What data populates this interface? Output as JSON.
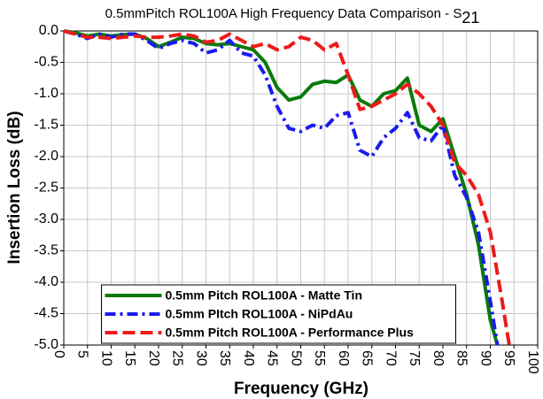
{
  "chart_data": {
    "type": "line",
    "title": "0.5mmPitch ROL100A High Frequency Data Comparison - S",
    "title_subscript": "21",
    "x_label": "Frequency (GHz)",
    "y_label": "Insertion Loss (dB)",
    "xlim": [
      0,
      100
    ],
    "xticks": [
      0,
      5,
      10,
      15,
      20,
      25,
      30,
      35,
      40,
      45,
      50,
      55,
      60,
      65,
      70,
      75,
      80,
      85,
      90,
      95,
      100
    ],
    "ylim": [
      -5,
      0
    ],
    "yticks": [
      {
        "value": 0,
        "label": "0.0"
      },
      -0.5,
      {
        "value": -1,
        "label": "-1.0"
      },
      -1.5,
      {
        "value": -2,
        "label": "-2.0"
      },
      -2.5,
      {
        "value": -3,
        "label": "-3.0"
      },
      -3.5,
      {
        "value": -4,
        "label": "-4.0"
      },
      -4.5,
      {
        "value": -5,
        "label": "-5.0"
      }
    ],
    "grid": true,
    "legend": "lower center",
    "series": [
      {
        "name": "0.5mm Pitch ROL100A - Matte Tin",
        "color": "#0a7a0a",
        "dash": "solid",
        "x": [
          0,
          2.5,
          5,
          7.5,
          10,
          12.5,
          15,
          17.5,
          20,
          22.5,
          25,
          27.5,
          30,
          32.5,
          35,
          37.5,
          40,
          42.5,
          45,
          47.5,
          50,
          52.5,
          55,
          57.5,
          60,
          62.5,
          65,
          67.5,
          70,
          72.5,
          75,
          77.5,
          80,
          82.5,
          85,
          87.5,
          90,
          91.5
        ],
        "values": [
          0,
          -0.03,
          -0.08,
          -0.05,
          -0.08,
          -0.06,
          -0.05,
          -0.12,
          -0.25,
          -0.18,
          -0.1,
          -0.12,
          -0.2,
          -0.22,
          -0.2,
          -0.25,
          -0.3,
          -0.5,
          -0.9,
          -1.1,
          -1.05,
          -0.85,
          -0.8,
          -0.82,
          -0.7,
          -1.1,
          -1.2,
          -1.0,
          -0.95,
          -0.75,
          -1.5,
          -1.6,
          -1.4,
          -2.0,
          -2.6,
          -3.4,
          -4.6,
          -5.0
        ]
      },
      {
        "name": "0.5mm PItch ROL100A - NiPdAu",
        "color": "#1a1aee",
        "dash": "dashdot",
        "x": [
          0,
          2.5,
          5,
          7.5,
          10,
          12.5,
          15,
          17.5,
          20,
          22.5,
          25,
          27.5,
          30,
          32.5,
          35,
          37.5,
          40,
          42.5,
          45,
          47.5,
          50,
          52.5,
          55,
          57.5,
          60,
          62.5,
          65,
          67.5,
          70,
          72.5,
          75,
          77.5,
          80,
          82.5,
          85,
          87.5,
          90,
          91.5
        ],
        "values": [
          0,
          -0.05,
          -0.12,
          -0.05,
          -0.1,
          -0.05,
          -0.05,
          -0.15,
          -0.28,
          -0.2,
          -0.15,
          -0.2,
          -0.35,
          -0.3,
          -0.15,
          -0.35,
          -0.4,
          -0.7,
          -1.2,
          -1.55,
          -1.6,
          -1.5,
          -1.55,
          -1.35,
          -1.3,
          -1.9,
          -2.0,
          -1.7,
          -1.55,
          -1.3,
          -1.7,
          -1.75,
          -1.5,
          -2.3,
          -2.65,
          -3.2,
          -4.3,
          -5.0
        ]
      },
      {
        "name": "0.5mm Pitch ROL100A - Performance Plus",
        "color": "#ee1a1a",
        "dash": "dash",
        "x": [
          0,
          2.5,
          5,
          7.5,
          10,
          12.5,
          15,
          17.5,
          20,
          22.5,
          25,
          27.5,
          30,
          32.5,
          35,
          37.5,
          40,
          42.5,
          45,
          47.5,
          50,
          52.5,
          55,
          57.5,
          60,
          62.5,
          65,
          67.5,
          70,
          72.5,
          75,
          77.5,
          80,
          82.5,
          85,
          87.5,
          90,
          92.5,
          94
        ],
        "values": [
          0,
          -0.05,
          -0.1,
          -0.1,
          -0.12,
          -0.1,
          -0.08,
          -0.1,
          -0.1,
          -0.08,
          -0.05,
          -0.08,
          -0.18,
          -0.15,
          -0.05,
          -0.15,
          -0.25,
          -0.2,
          -0.3,
          -0.25,
          -0.1,
          -0.15,
          -0.3,
          -0.2,
          -0.7,
          -1.25,
          -1.2,
          -1.1,
          -1.0,
          -0.85,
          -1.0,
          -1.2,
          -1.5,
          -2.1,
          -2.3,
          -2.6,
          -3.2,
          -4.3,
          -5.0
        ]
      }
    ]
  }
}
